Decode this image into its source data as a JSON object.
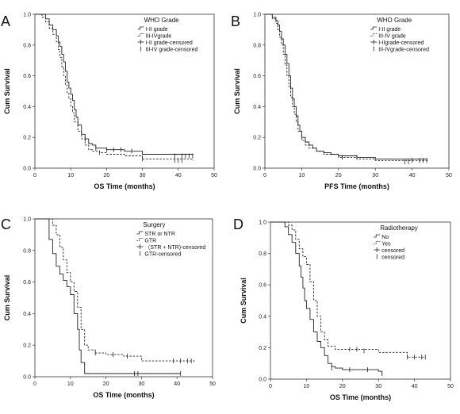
{
  "chart_data": [
    {
      "type": "line",
      "panel_letter": "A",
      "xlabel": "OS Time (months)",
      "ylabel": "Cum Survival",
      "xlim": [
        0,
        50
      ],
      "ylim": [
        0,
        1.0
      ],
      "xticks": [
        "0",
        "10",
        "20",
        "30",
        "40",
        "50"
      ],
      "yticks": [
        "0.0",
        "0.2",
        "0.4",
        "0.6",
        "0.8",
        "1.0"
      ],
      "legend_title": "WHO Grade",
      "legend_position": "top-right",
      "legend": [
        "I-II grade",
        "III-IVgrade",
        "I-II grade-censored",
        "III-IV grade-censored"
      ],
      "series": [
        {
          "name": "I-II grade",
          "style": "solid",
          "x": [
            0,
            2,
            3,
            4,
            5,
            6,
            6.5,
            7,
            7.5,
            8,
            8.5,
            9,
            9.5,
            10,
            10.5,
            11,
            11.5,
            12,
            13,
            14,
            15,
            16,
            17,
            20,
            25,
            30,
            35,
            44
          ],
          "y": [
            1.0,
            1.0,
            0.97,
            0.93,
            0.9,
            0.86,
            0.82,
            0.79,
            0.74,
            0.69,
            0.63,
            0.56,
            0.52,
            0.48,
            0.44,
            0.38,
            0.33,
            0.28,
            0.22,
            0.19,
            0.16,
            0.15,
            0.13,
            0.12,
            0.11,
            0.09,
            0.09,
            0.08
          ]
        },
        {
          "name": "III-IVgrade",
          "style": "dashed",
          "x": [
            0,
            2,
            3,
            4,
            5,
            6,
            6.5,
            7,
            7.5,
            8,
            8.5,
            9,
            9.5,
            10,
            10.5,
            11,
            12,
            13,
            14,
            15,
            16,
            18,
            20,
            25,
            30,
            44
          ],
          "y": [
            1.0,
            0.98,
            0.95,
            0.91,
            0.87,
            0.82,
            0.77,
            0.72,
            0.66,
            0.6,
            0.54,
            0.49,
            0.45,
            0.4,
            0.36,
            0.3,
            0.24,
            0.19,
            0.15,
            0.12,
            0.11,
            0.1,
            0.09,
            0.08,
            0.06,
            0.05
          ]
        }
      ],
      "censored": [
        {
          "series": "I-II grade",
          "x": [
            14,
            17,
            20,
            22,
            24,
            27,
            39,
            41,
            42,
            43,
            44
          ],
          "y": [
            0.19,
            0.13,
            0.12,
            0.12,
            0.12,
            0.11,
            0.08,
            0.08,
            0.08,
            0.08,
            0.08
          ]
        },
        {
          "series": "III-IVgrade",
          "x": [
            18,
            30,
            39,
            40,
            41
          ],
          "y": [
            0.1,
            0.06,
            0.05,
            0.05,
            0.05
          ]
        }
      ]
    },
    {
      "type": "line",
      "panel_letter": "B",
      "xlabel": "PFS Time (months)",
      "ylabel": "Cum Survival",
      "xlim": [
        0,
        50
      ],
      "ylim": [
        0,
        1.0
      ],
      "xticks": [
        "0",
        "10",
        "20",
        "30",
        "40",
        "50"
      ],
      "yticks": [
        "0.0",
        "0.2",
        "0.4",
        "0.6",
        "0.8",
        "1.0"
      ],
      "legend_title": "WHO Grade",
      "legend_position": "top-right",
      "legend": [
        "I-II grade",
        "III-IV grade",
        "I-IIgrade-censored",
        "III-IVgrade-censored"
      ],
      "series": [
        {
          "name": "I-II grade",
          "style": "solid",
          "x": [
            0,
            2,
            3,
            3.5,
            4,
            4.5,
            5,
            5.5,
            6,
            6.5,
            7,
            7.5,
            8,
            8.5,
            9,
            9.5,
            10,
            11,
            12,
            13,
            14,
            16,
            18,
            20,
            25,
            30,
            44
          ],
          "y": [
            1.0,
            0.98,
            0.96,
            0.93,
            0.89,
            0.84,
            0.8,
            0.74,
            0.68,
            0.6,
            0.52,
            0.45,
            0.4,
            0.34,
            0.28,
            0.24,
            0.2,
            0.17,
            0.15,
            0.13,
            0.11,
            0.1,
            0.09,
            0.08,
            0.07,
            0.06,
            0.05
          ]
        },
        {
          "name": "III-IV grade",
          "style": "dashed",
          "x": [
            0,
            2,
            3,
            3.5,
            4,
            4.5,
            5,
            5.5,
            6,
            6.5,
            7,
            7.5,
            8,
            8.5,
            9,
            10,
            11,
            12,
            14,
            16,
            20,
            25,
            30,
            44
          ],
          "y": [
            1.0,
            0.97,
            0.94,
            0.9,
            0.85,
            0.8,
            0.74,
            0.67,
            0.6,
            0.53,
            0.46,
            0.4,
            0.35,
            0.3,
            0.24,
            0.18,
            0.15,
            0.13,
            0.11,
            0.09,
            0.07,
            0.06,
            0.05,
            0.04
          ]
        }
      ],
      "censored": [
        {
          "series": "I-II grade",
          "x": [
            25,
            40,
            42,
            43,
            44
          ],
          "y": [
            0.07,
            0.05,
            0.05,
            0.05,
            0.05
          ]
        },
        {
          "series": "III-IV grade",
          "x": [
            21,
            38,
            39
          ],
          "y": [
            0.07,
            0.04,
            0.04
          ]
        }
      ]
    },
    {
      "type": "line",
      "panel_letter": "C",
      "xlabel": "OS Time (months)",
      "ylabel": "Cum Survival",
      "xlim": [
        0,
        50
      ],
      "ylim": [
        0,
        1.0
      ],
      "xticks": [
        "0",
        "10",
        "20",
        "30",
        "40",
        "50"
      ],
      "yticks": [
        "0.0",
        "0.2",
        "0.4",
        "0.6",
        "0.8",
        "1.0"
      ],
      "legend_title": "Surgery",
      "legend_position": "top-right",
      "legend": [
        "STR or NTR",
        "GTR",
        "（STR + NTR)-censored",
        "GTR-censored"
      ],
      "series": [
        {
          "name": "STR or NTR",
          "style": "solid",
          "x": [
            0,
            3,
            4,
            5,
            6,
            7,
            8,
            9,
            10,
            11,
            12,
            12.5,
            13,
            14,
            41
          ],
          "y": [
            1.0,
            1.0,
            0.87,
            0.78,
            0.7,
            0.65,
            0.61,
            0.57,
            0.52,
            0.4,
            0.3,
            0.17,
            0.09,
            0.02,
            0.02
          ]
        },
        {
          "name": "GTR",
          "style": "dashed",
          "x": [
            0,
            4,
            5,
            6,
            7,
            8,
            9,
            10,
            11,
            12,
            13,
            14,
            15,
            17,
            20,
            25,
            30,
            45
          ],
          "y": [
            1.0,
            1.0,
            0.96,
            0.9,
            0.82,
            0.74,
            0.66,
            0.6,
            0.54,
            0.44,
            0.3,
            0.2,
            0.17,
            0.15,
            0.14,
            0.13,
            0.1,
            0.1
          ]
        }
      ],
      "censored": [
        {
          "series": "STR or NTR",
          "x": [
            28,
            29,
            41
          ],
          "y": [
            0.02,
            0.02,
            0.02
          ]
        },
        {
          "series": "GTR",
          "x": [
            17,
            22,
            26,
            39,
            41,
            43,
            44
          ],
          "y": [
            0.15,
            0.14,
            0.13,
            0.1,
            0.1,
            0.1,
            0.1
          ]
        }
      ]
    },
    {
      "type": "line",
      "panel_letter": "D",
      "xlabel": "OS Time (months)",
      "ylabel": "Cum Survival",
      "xlim": [
        0,
        50
      ],
      "ylim": [
        0,
        1.0
      ],
      "xticks": [
        "0",
        "10",
        "20",
        "30",
        "40",
        "50"
      ],
      "yticks": [
        "0.0",
        "0.2",
        "0.4",
        "0.6",
        "0.8",
        "1.0"
      ],
      "legend_title": "Radiotherapy",
      "legend_position": "top-right",
      "legend": [
        "No",
        "Yes",
        "censored",
        "censored"
      ],
      "series": [
        {
          "name": "No",
          "style": "solid",
          "x": [
            0,
            3,
            4,
            5,
            6,
            7,
            8,
            8.5,
            9,
            9.5,
            10,
            11,
            12,
            13,
            14,
            15,
            16,
            17,
            18,
            20,
            25,
            30,
            31
          ],
          "y": [
            1.0,
            1.0,
            0.97,
            0.92,
            0.87,
            0.8,
            0.72,
            0.65,
            0.58,
            0.5,
            0.45,
            0.38,
            0.3,
            0.24,
            0.2,
            0.15,
            0.1,
            0.08,
            0.07,
            0.06,
            0.06,
            0.05,
            0.02
          ]
        },
        {
          "name": "Yes",
          "style": "dashed",
          "x": [
            0,
            3,
            5,
            6,
            7,
            8,
            9,
            10,
            11,
            12,
            13,
            14,
            15,
            16,
            18,
            20,
            30,
            38,
            43
          ],
          "y": [
            1.0,
            1.0,
            0.98,
            0.95,
            0.89,
            0.83,
            0.78,
            0.73,
            0.62,
            0.5,
            0.4,
            0.3,
            0.25,
            0.21,
            0.19,
            0.19,
            0.17,
            0.14,
            0.14
          ]
        }
      ],
      "censored": [
        {
          "series": "No",
          "x": [
            17,
            22,
            27
          ],
          "y": [
            0.07,
            0.06,
            0.06
          ]
        },
        {
          "series": "Yes",
          "x": [
            22,
            24,
            26,
            38,
            40,
            42,
            43
          ],
          "y": [
            0.19,
            0.19,
            0.18,
            0.14,
            0.14,
            0.14,
            0.14
          ]
        }
      ]
    }
  ]
}
